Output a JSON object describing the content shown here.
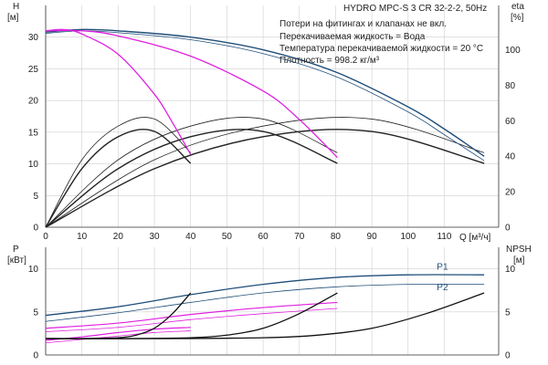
{
  "chart_data": {
    "type": "line",
    "title": "HYDRO MPC-S 3 CR 32-2-2, 50Hz",
    "notes": [
      "Потери на фитингах и клапанах не вкл.",
      "Перекачиваемая жидкость = Вода",
      "Температура перекачиваемой жидкости = 20 °C",
      "Плотность = 998.2 кг/м³"
    ],
    "colors": {
      "head": "#1f4e79",
      "eff": "#222222",
      "power": "#1f4e79",
      "partial": "#e020e0",
      "npsh": "#111111"
    },
    "top": {
      "ylabel_left": "H",
      "ylabel_left_unit": "[м]",
      "ylabel_right": "eta",
      "ylabel_right_unit": "[%]",
      "xlabel": "Q [м³/ч]",
      "xlim": [
        0,
        125
      ],
      "ylim_left": [
        0,
        35
      ],
      "yticks_left": [
        0,
        5,
        10,
        15,
        20,
        25,
        30
      ],
      "ylim_right": [
        0,
        125
      ],
      "yticks_right": [
        0,
        20,
        40,
        60,
        80,
        100
      ],
      "xticks": [
        0,
        10,
        20,
        30,
        40,
        50,
        60,
        70,
        80,
        90,
        100,
        110
      ],
      "head_series": [
        {
          "color": "head",
          "width": 1.4,
          "x": [
            0,
            10,
            20,
            40,
            60,
            80,
            100,
            110,
            121
          ],
          "y": [
            30.8,
            31.2,
            31,
            30,
            28,
            24.5,
            19,
            15.5,
            11.2
          ]
        },
        {
          "color": "head",
          "width": 0.8,
          "x": [
            0,
            10,
            20,
            40,
            60,
            80,
            100,
            110,
            121
          ],
          "y": [
            30.6,
            31,
            30.7,
            29.6,
            27.4,
            23.8,
            18.2,
            14.6,
            10.5
          ]
        },
        {
          "color": "partial",
          "width": 1.3,
          "x": [
            0,
            10,
            20,
            40,
            60,
            70,
            80.5
          ],
          "y": [
            31,
            31,
            30.2,
            27,
            21.5,
            17,
            11
          ]
        },
        {
          "color": "partial",
          "width": 1.3,
          "x": [
            0,
            5,
            10,
            20,
            30,
            35,
            40
          ],
          "y": [
            31,
            31.2,
            30.5,
            27.3,
            21,
            16.5,
            11.5
          ]
        }
      ],
      "eff_series": [
        {
          "width": 1.4,
          "x": [
            0,
            10,
            20,
            30,
            40
          ],
          "y": [
            0,
            33,
            51,
            54,
            36
          ]
        },
        {
          "width": 0.8,
          "x": [
            0,
            10,
            20,
            30,
            40
          ],
          "y": [
            0,
            38,
            57,
            61,
            42
          ]
        },
        {
          "width": 1.4,
          "x": [
            0,
            20,
            40,
            60,
            80.5
          ],
          "y": [
            0,
            33,
            51,
            54,
            36
          ]
        },
        {
          "width": 0.8,
          "x": [
            0,
            20,
            40,
            60,
            80.5
          ],
          "y": [
            0,
            38,
            57,
            61,
            42
          ]
        },
        {
          "width": 1.4,
          "x": [
            0,
            30,
            60,
            90,
            121
          ],
          "y": [
            0,
            33,
            51,
            54,
            36
          ]
        },
        {
          "width": 0.8,
          "x": [
            0,
            30,
            60,
            90,
            121
          ],
          "y": [
            0,
            38,
            57,
            61,
            42
          ]
        }
      ]
    },
    "bottom": {
      "ylabel_left": "P",
      "ylabel_left_unit": "[кВт]",
      "ylabel_right": "NPSH",
      "ylabel_right_unit": "[м]",
      "xlim": [
        0,
        125
      ],
      "ylim_left": [
        0,
        12.5
      ],
      "yticks_left": [
        0,
        5,
        10
      ],
      "ylim_right": [
        0,
        12.5
      ],
      "yticks_right": [
        0,
        5,
        10
      ],
      "labels": [
        {
          "text": "P1",
          "x": 116,
          "y": 9.9
        },
        {
          "text": "P2",
          "x": 116,
          "y": 7.5
        }
      ],
      "power_series": [
        {
          "color": "power",
          "width": 1.3,
          "x": [
            0,
            20,
            40,
            60,
            80,
            100,
            121
          ],
          "y": [
            4.6,
            5.6,
            7,
            8.2,
            9,
            9.3,
            9.3
          ]
        },
        {
          "color": "power",
          "width": 0.8,
          "x": [
            0,
            20,
            40,
            60,
            80,
            100,
            121
          ],
          "y": [
            3.9,
            4.9,
            6.1,
            7.2,
            7.9,
            8.2,
            8.2
          ]
        },
        {
          "color": "partial",
          "width": 1.2,
          "x": [
            0,
            20,
            40,
            60,
            80.5
          ],
          "y": [
            3.1,
            3.7,
            4.7,
            5.5,
            6.1
          ]
        },
        {
          "color": "partial",
          "width": 0.8,
          "x": [
            0,
            20,
            40,
            60,
            80.5
          ],
          "y": [
            2.7,
            3.2,
            4.1,
            4.8,
            5.4
          ]
        },
        {
          "color": "partial",
          "width": 1.2,
          "x": [
            0,
            10,
            20,
            30,
            40
          ],
          "y": [
            1.7,
            2.1,
            2.6,
            3,
            3.2
          ]
        },
        {
          "color": "partial",
          "width": 0.8,
          "x": [
            0,
            10,
            20,
            30,
            40
          ],
          "y": [
            1.4,
            1.8,
            2.2,
            2.6,
            2.8
          ]
        }
      ],
      "npsh_series": [
        {
          "x": [
            0,
            10,
            20,
            25,
            30,
            35,
            40
          ],
          "y": [
            1.9,
            1.9,
            2,
            2.3,
            3.1,
            4.8,
            7.2
          ]
        },
        {
          "x": [
            0,
            20,
            40,
            50,
            60,
            70,
            80.5
          ],
          "y": [
            1.9,
            1.9,
            2,
            2.3,
            3.1,
            4.8,
            7.2
          ]
        },
        {
          "x": [
            0,
            30,
            60,
            75,
            90,
            105,
            121
          ],
          "y": [
            1.9,
            1.9,
            2,
            2.3,
            3.1,
            4.8,
            7.2
          ]
        }
      ]
    }
  }
}
